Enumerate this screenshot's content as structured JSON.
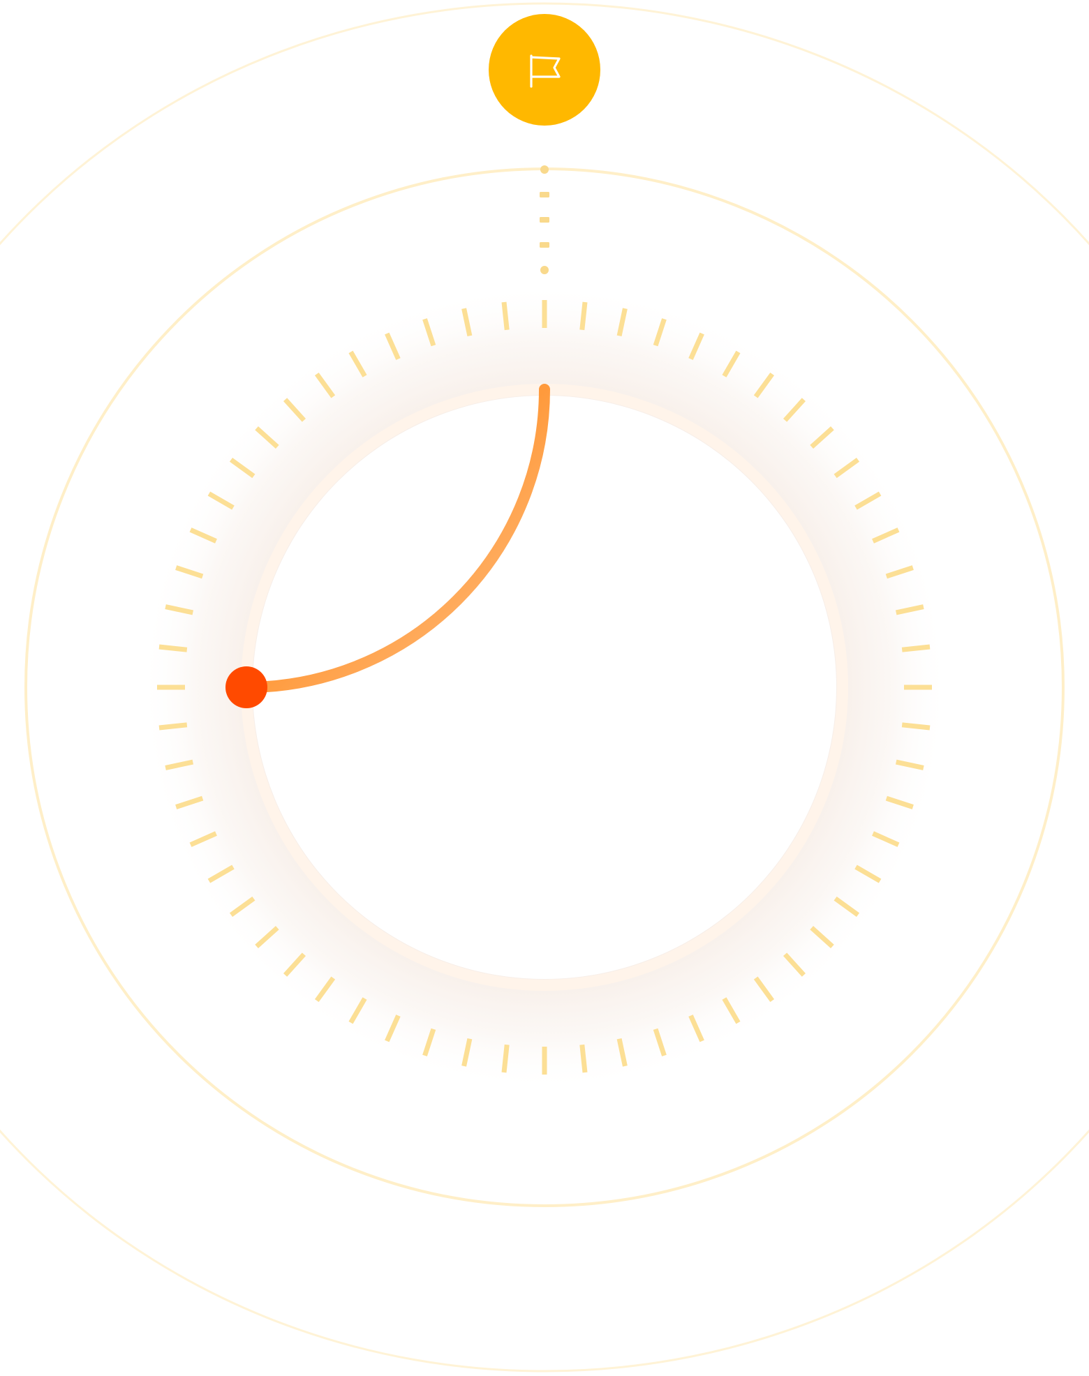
{
  "timer": {
    "progress_fraction": 0.25,
    "tick_count": 60,
    "start_marker_icon": "flag-icon",
    "knob_icon": "circle-knob"
  },
  "colors": {
    "ring_outer": "#FFF3D6",
    "ring_middle": "#FFEFC8",
    "ticks": "#FCDF95",
    "connector": "#F9D98C",
    "flag_button": "#FFB800",
    "flag_icon": "#FFFFFF",
    "progress_start": "#FF9A3C",
    "progress_end": "#FFE9D2",
    "knob": "#FF4A00",
    "glow": "#F2E2D8"
  }
}
